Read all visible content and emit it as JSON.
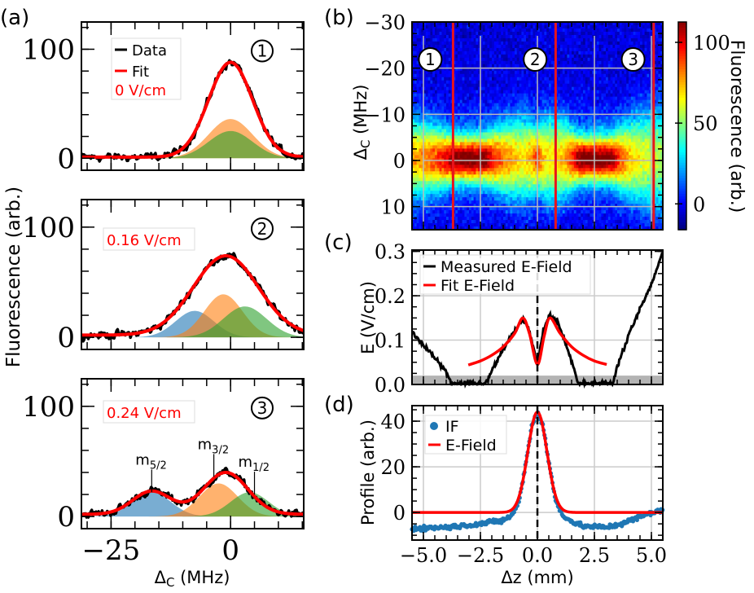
{
  "panel_labels": {
    "a": "(a)",
    "b": "(b)",
    "c": "(c)",
    "d": "(d)"
  },
  "colors": {
    "data": "#000000",
    "fit": "#ff0000",
    "comp_blue": "#1f77b4",
    "comp_orange": "#ff7f0e",
    "comp_green": "#2ca02c",
    "if_points": "#1f77b4",
    "red_lines": "#e8141c"
  },
  "axis_labels": {
    "a_ylabel": "Fluorescence (arb.)",
    "a_xlabel": {
      "main": "Δ",
      "sub": "C",
      "unit": " (MHz)"
    },
    "b_ylabel": {
      "main": "Δ",
      "sub": "C",
      "unit": " (MHz)"
    },
    "b_colorbar_label": "Fluorescence (arb.)",
    "c_ylabel": "E (V/cm)",
    "d_ylabel": "Profile (arb.)",
    "d_xlabel": "Δz (mm)"
  },
  "chart_data": [
    {
      "id": "a1",
      "type": "line",
      "marker": "1",
      "xlim": [
        -31.2,
        15.3
      ],
      "ylim": [
        -11,
        125
      ],
      "xticks": [
        -25,
        0
      ],
      "xtick_labels": [],
      "yticks": [
        0,
        100
      ],
      "ytick_labels": [
        "0",
        "100"
      ],
      "legend": {
        "data": "Data",
        "fit": "Fit",
        "field": "0 V/cm"
      },
      "fit": [
        {
          "amp": 87,
          "center": 0,
          "sigma": 4.6
        }
      ],
      "offset": 1,
      "components": [
        {
          "color": "comp_orange",
          "amp": 36,
          "center": 0,
          "sigma": 4.6
        },
        {
          "color": "comp_green",
          "amp": 25,
          "center": 0,
          "sigma": 4.6
        }
      ]
    },
    {
      "id": "a2",
      "type": "line",
      "marker": "2",
      "xlim": [
        -31.2,
        15.3
      ],
      "ylim": [
        -11,
        125
      ],
      "xticks": [
        -25,
        0
      ],
      "xtick_labels": [],
      "yticks": [
        0,
        100
      ],
      "ytick_labels": [
        "0",
        "100"
      ],
      "legend": {
        "field": "0.16 V/cm"
      },
      "fit": [
        {
          "amp": 72,
          "center": -1,
          "sigma": 6.8
        }
      ],
      "offset": 2,
      "components": [
        {
          "color": "comp_blue",
          "amp": 24,
          "center": -7.5,
          "sigma": 4
        },
        {
          "color": "comp_orange",
          "amp": 39,
          "center": -1.5,
          "sigma": 4
        },
        {
          "color": "comp_green",
          "amp": 28,
          "center": 3,
          "sigma": 4.5
        }
      ]
    },
    {
      "id": "a3",
      "type": "line",
      "marker": "3",
      "xlim": [
        -31.2,
        15.3
      ],
      "ylim": [
        -11,
        125
      ],
      "xticks": [
        -25,
        0
      ],
      "xtick_labels": [
        "−25",
        "0"
      ],
      "yticks": [
        0,
        100
      ],
      "ytick_labels": [
        "0",
        "100"
      ],
      "legend": {
        "field": "0.24 V/cm"
      },
      "fit": [
        {
          "amp": 21,
          "center": -16.5,
          "sigma": 4
        },
        {
          "amp": 38,
          "center": -1,
          "sigma": 4.6
        }
      ],
      "offset": 2,
      "components": [
        {
          "color": "comp_blue",
          "amp": 22,
          "center": -16.5,
          "sigma": 4
        },
        {
          "color": "comp_orange",
          "amp": 30,
          "center": -2.5,
          "sigma": 4
        },
        {
          "color": "comp_green",
          "amp": 22,
          "center": 4,
          "sigma": 4
        }
      ],
      "annotations": [
        {
          "text": "m",
          "sub": "5/2",
          "x": -16.5,
          "y": 22
        },
        {
          "text": "m",
          "sub": "3/2",
          "x": -3.5,
          "y": 36
        },
        {
          "text": "m",
          "sub": "1/2",
          "x": 5,
          "y": 20
        }
      ]
    },
    {
      "id": "b",
      "type": "heatmap",
      "xlim": [
        -5.5,
        5.5
      ],
      "ylim": [
        15,
        -30
      ],
      "xgrid": [
        -5,
        -2.5,
        0,
        2.5,
        5
      ],
      "yticks": [
        -30,
        -20,
        -10,
        0,
        10
      ],
      "ytick_labels": [
        "−30",
        "−20",
        "−10",
        "0",
        "10"
      ],
      "colorbar": {
        "range": [
          -16,
          112.6
        ],
        "ticks": [
          0,
          50,
          100
        ],
        "tick_labels": [
          "0",
          "50",
          "100"
        ],
        "colormap": "jet"
      },
      "band_peak": 95,
      "red_lines_z": [
        -3.7,
        0.8,
        5.1
      ],
      "markers": [
        {
          "label": "1",
          "z": -4.7
        },
        {
          "label": "2",
          "z": -0.1
        },
        {
          "label": "3",
          "z": 4.2
        }
      ]
    },
    {
      "id": "c",
      "type": "line",
      "xlim": [
        -5.5,
        5.5
      ],
      "ylim": [
        0,
        0.303
      ],
      "xgrid": [
        -5,
        -2.5,
        0,
        2.5,
        5
      ],
      "yticks": [
        0,
        0.1,
        0.2,
        0.3
      ],
      "ytick_labels": [
        "0.0",
        "0.1",
        "0.2",
        "0.3"
      ],
      "noise_band": [
        0,
        0.02
      ],
      "legend": {
        "measured": "Measured E-Field",
        "fit": "Fit E-Field"
      },
      "measured": [
        [
          -5.5,
          0.115
        ],
        [
          -5,
          0.09
        ],
        [
          -4.5,
          0.06
        ],
        [
          -4,
          0.028
        ],
        [
          -3.75,
          0.0
        ],
        [
          -2.3,
          0.0
        ],
        [
          -2.0,
          0.03
        ],
        [
          -1.5,
          0.08
        ],
        [
          -1,
          0.12
        ],
        [
          -0.64,
          0.149
        ],
        [
          -0.35,
          0.12
        ],
        [
          0,
          0.044
        ],
        [
          0.25,
          0.12
        ],
        [
          0.54,
          0.158
        ],
        [
          0.9,
          0.14
        ],
        [
          1.3,
          0.085
        ],
        [
          1.6,
          0.035
        ],
        [
          1.8,
          0.0
        ],
        [
          3.3,
          0.0
        ],
        [
          3.5,
          0.04
        ],
        [
          4,
          0.11
        ],
        [
          4.5,
          0.17
        ],
        [
          5,
          0.225
        ],
        [
          5.47,
          0.295
        ]
      ],
      "fit": [
        [
          -3.03,
          0.044
        ],
        [
          -2.5,
          0.053
        ],
        [
          -2,
          0.066
        ],
        [
          -1.5,
          0.085
        ],
        [
          -1,
          0.115
        ],
        [
          -0.64,
          0.15
        ],
        [
          -0.35,
          0.115
        ],
        [
          0,
          0.045
        ],
        [
          0.3,
          0.11
        ],
        [
          0.55,
          0.15
        ],
        [
          1,
          0.115
        ],
        [
          1.5,
          0.085
        ],
        [
          2,
          0.066
        ],
        [
          2.5,
          0.053
        ],
        [
          3.04,
          0.045
        ]
      ]
    },
    {
      "id": "d",
      "type": "scatter",
      "xlim": [
        -5.5,
        5.5
      ],
      "ylim": [
        -12.1,
        46.8
      ],
      "xticks": [
        -5,
        -2.5,
        0,
        2.5,
        5
      ],
      "xtick_labels": [
        "−5.0",
        "−2.5",
        "0.0",
        "2.5",
        "5.0"
      ],
      "yticks": [
        0,
        20,
        40
      ],
      "ytick_labels": [
        "0",
        "20",
        "40"
      ],
      "legend": {
        "if": "IF",
        "fit": "E-Field"
      },
      "if_profile": [
        [
          -5.5,
          -7
        ],
        [
          -4,
          -6.5
        ],
        [
          -2.5,
          -5
        ],
        [
          -1.5,
          -3.5
        ],
        [
          -1.1,
          -1
        ],
        [
          -0.8,
          5
        ],
        [
          -0.5,
          22
        ],
        [
          -0.25,
          38
        ],
        [
          0,
          44
        ],
        [
          0.25,
          38
        ],
        [
          0.5,
          22
        ],
        [
          0.8,
          5
        ],
        [
          1.1,
          -1
        ],
        [
          1.5,
          -4
        ],
        [
          2,
          -6
        ],
        [
          3,
          -6.5
        ],
        [
          3.5,
          -5.5
        ],
        [
          4.5,
          -2
        ],
        [
          5,
          0
        ],
        [
          5.5,
          1
        ]
      ],
      "fit": {
        "amp": 44,
        "center": 0,
        "sigma": 0.42,
        "offset": 0
      }
    }
  ]
}
